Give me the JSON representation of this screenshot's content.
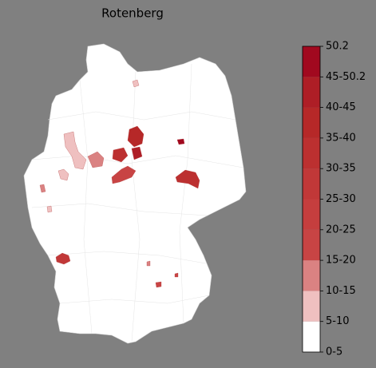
{
  "title": "Rotenberg",
  "colorbar": {
    "labels": [
      "0-5",
      "5-10",
      "10-15",
      "15-20",
      "20-25",
      "25-30",
      "30-35",
      "35-40",
      "40-45",
      "45-50.2",
      "50.2"
    ],
    "colors": [
      "#ffffff",
      "#efc0c0",
      "#da8282",
      "#c84444",
      "#c53e3e",
      "#c13838",
      "#bc3030",
      "#b62828",
      "#ae1e26",
      "#a1091f"
    ]
  }
}
